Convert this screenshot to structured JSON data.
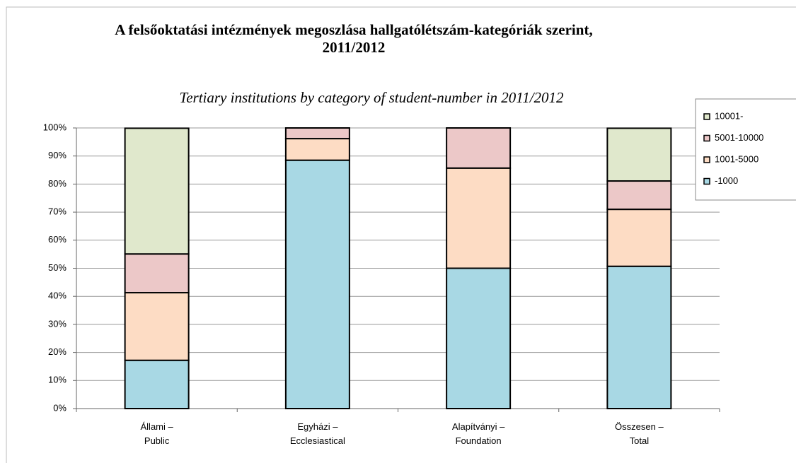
{
  "chart_data": {
    "type": "stacked_bar",
    "title": "A felsőoktatási intézmények megoszlása hallgatólétszám-kategóriák szerint,\n2011/2012",
    "subtitle": "Tertiary institutions by category of student-number in 2011/2012",
    "categories": [
      "Állami –\nPublic",
      "Egyházi –\nEcclesiastical",
      "Alapítványi –\nFoundation",
      "Összesen –\nTotal"
    ],
    "series": [
      {
        "name": "-1000",
        "color": "#a8d8e4",
        "values": [
          17.2,
          88.5,
          50,
          50.7
        ]
      },
      {
        "name": "1001-5000",
        "color": "#fddcc4",
        "values": [
          24.1,
          7.7,
          35.7,
          20.3
        ]
      },
      {
        "name": "5001-10000",
        "color": "#ecc8c8",
        "values": [
          13.8,
          3.8,
          14.3,
          10.1
        ]
      },
      {
        "name": "10001-",
        "color": "#e0e8cc",
        "values": [
          44.8,
          0,
          0,
          18.8
        ]
      }
    ],
    "ylim": [
      0,
      100
    ],
    "yticks": [
      {
        "value": 0,
        "label": "0%"
      },
      {
        "value": 10,
        "label": "10%"
      },
      {
        "value": 20,
        "label": "20%"
      },
      {
        "value": 30,
        "label": "30%"
      },
      {
        "value": 40,
        "label": "40%"
      },
      {
        "value": 50,
        "label": "50%"
      },
      {
        "value": 60,
        "label": "60%"
      },
      {
        "value": 70,
        "label": "70%"
      },
      {
        "value": 80,
        "label": "80%"
      },
      {
        "value": 90,
        "label": "90%"
      },
      {
        "value": 100,
        "label": "100%"
      }
    ],
    "grid": true,
    "legend": "right"
  }
}
